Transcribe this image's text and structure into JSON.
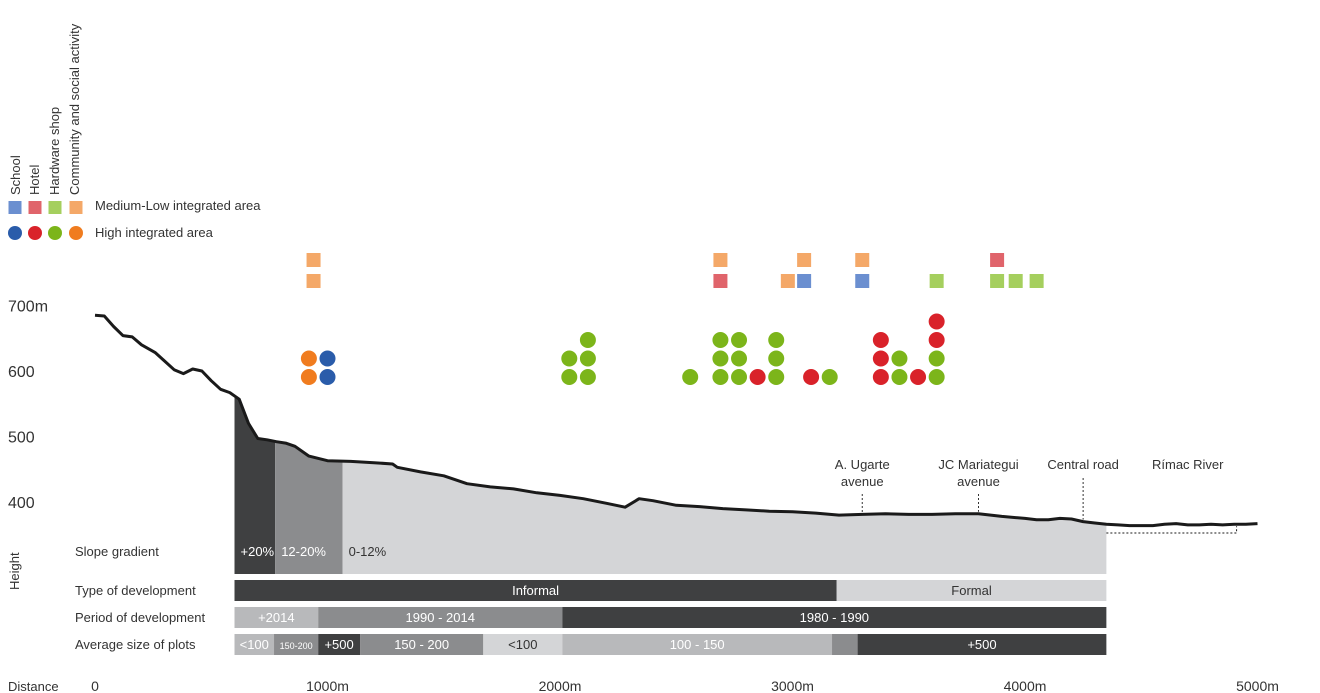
{
  "legend": {
    "categories": [
      {
        "label": "School",
        "color": "#2a5caa",
        "square_color": "#6b8fd0"
      },
      {
        "label": "Hotel",
        "color": "#d9222a",
        "square_color": "#e0646b"
      },
      {
        "label": "Hardware shop",
        "color": "#7cb51a",
        "square_color": "#a5cf5e"
      },
      {
        "label": "Community and social activity",
        "color": "#f07c1f",
        "square_color": "#f4a868"
      }
    ],
    "medium_low_label": "Medium-Low integrated area",
    "high_label": "High integrated area"
  },
  "axes": {
    "y_title": "Height",
    "x_title": "Distance",
    "y_ticks": [
      {
        "value": 700,
        "label": "700m"
      },
      {
        "value": 600,
        "label": "600"
      },
      {
        "value": 500,
        "label": "500"
      },
      {
        "value": 400,
        "label": "400"
      }
    ],
    "x_ticks": [
      {
        "value": 0,
        "label": "0"
      },
      {
        "value": 1000,
        "label": "1000m"
      },
      {
        "value": 2000,
        "label": "2000m"
      },
      {
        "value": 3000,
        "label": "3000m"
      },
      {
        "value": 4000,
        "label": "4000m"
      },
      {
        "value": 5000,
        "label": "5000m"
      }
    ]
  },
  "profile": [
    [
      0,
      685
    ],
    [
      40,
      684
    ],
    [
      80,
      668
    ],
    [
      120,
      654
    ],
    [
      160,
      652
    ],
    [
      200,
      640
    ],
    [
      260,
      628
    ],
    [
      300,
      615
    ],
    [
      340,
      602
    ],
    [
      380,
      596
    ],
    [
      420,
      603
    ],
    [
      460,
      600
    ],
    [
      500,
      585
    ],
    [
      540,
      572
    ],
    [
      580,
      567
    ],
    [
      620,
      557
    ],
    [
      660,
      520
    ],
    [
      700,
      497
    ],
    [
      740,
      495
    ],
    [
      780,
      492
    ],
    [
      820,
      490
    ],
    [
      860,
      485
    ],
    [
      920,
      470
    ],
    [
      1000,
      463
    ],
    [
      1100,
      462
    ],
    [
      1200,
      460
    ],
    [
      1280,
      458
    ],
    [
      1300,
      453
    ],
    [
      1400,
      446
    ],
    [
      1500,
      440
    ],
    [
      1600,
      428
    ],
    [
      1700,
      423
    ],
    [
      1800,
      420
    ],
    [
      1900,
      414
    ],
    [
      2000,
      410
    ],
    [
      2100,
      405
    ],
    [
      2200,
      398
    ],
    [
      2280,
      392
    ],
    [
      2340,
      405
    ],
    [
      2400,
      402
    ],
    [
      2500,
      395
    ],
    [
      2600,
      393
    ],
    [
      2700,
      390
    ],
    [
      2800,
      388
    ],
    [
      2900,
      386
    ],
    [
      3000,
      385
    ],
    [
      3100,
      383
    ],
    [
      3200,
      380
    ],
    [
      3300,
      381
    ],
    [
      3400,
      382
    ],
    [
      3500,
      381
    ],
    [
      3600,
      381
    ],
    [
      3700,
      382
    ],
    [
      3800,
      382
    ],
    [
      3900,
      378
    ],
    [
      4000,
      375
    ],
    [
      4050,
      373
    ],
    [
      4100,
      373
    ],
    [
      4150,
      375
    ],
    [
      4200,
      374
    ],
    [
      4250,
      370
    ],
    [
      4300,
      368
    ],
    [
      4350,
      366
    ],
    [
      4400,
      365
    ],
    [
      4450,
      364
    ],
    [
      4500,
      364
    ],
    [
      4550,
      364
    ],
    [
      4600,
      366
    ],
    [
      4650,
      367
    ],
    [
      4700,
      365
    ],
    [
      4750,
      365
    ],
    [
      4800,
      366
    ],
    [
      4850,
      365
    ],
    [
      4900,
      366
    ],
    [
      4950,
      366
    ],
    [
      5000,
      367
    ]
  ],
  "slope": {
    "row_label": "Slope gradient",
    "bands": [
      {
        "from": 600,
        "to": 775,
        "label": "+20%",
        "color": "#3f4041"
      },
      {
        "from": 775,
        "to": 1065,
        "label": "12-20%",
        "color": "#8b8c8e"
      },
      {
        "from": 1065,
        "to": 4350,
        "label": "0-12%",
        "color": "#d4d5d7"
      }
    ]
  },
  "landmarks": [
    {
      "distance": 3300,
      "label_lines": [
        "A. Ugarte",
        "avenue"
      ]
    },
    {
      "distance": 3800,
      "label_lines": [
        "JC Mariategui",
        "avenue"
      ]
    },
    {
      "distance": 4250,
      "label_lines": [
        "Central road"
      ]
    },
    {
      "distance": 4700,
      "label_lines": [
        "Rímac River"
      ]
    }
  ],
  "rows": [
    {
      "label": "Type of development",
      "segments": [
        {
          "from": 600,
          "to": 3190,
          "label": "Informal",
          "color": "#3f4041"
        },
        {
          "from": 3190,
          "to": 4350,
          "label": "Formal",
          "color": "#d4d5d7"
        }
      ]
    },
    {
      "label": "Period of development",
      "segments": [
        {
          "from": 600,
          "to": 960,
          "label": "+2014",
          "color": "#b8b9bb"
        },
        {
          "from": 960,
          "to": 2010,
          "label": "1990 - 2014",
          "color": "#8b8c8e"
        },
        {
          "from": 2010,
          "to": 4350,
          "label": "1980 - 1990",
          "color": "#3f4041"
        }
      ]
    },
    {
      "label": "Average size of plots",
      "segments": [
        {
          "from": 600,
          "to": 770,
          "label": "<100",
          "color": "#b8b9bb"
        },
        {
          "from": 770,
          "to": 960,
          "label": "150-200",
          "color": "#8b8c8e",
          "small": true
        },
        {
          "from": 960,
          "to": 1140,
          "label": "+500",
          "color": "#3f4041"
        },
        {
          "from": 1140,
          "to": 1670,
          "label": "150 - 200",
          "color": "#8b8c8e"
        },
        {
          "from": 1670,
          "to": 2010,
          "label": "<100",
          "color": "#d4d5d7"
        },
        {
          "from": 2010,
          "to": 3170,
          "label": "100 - 150",
          "color": "#b8b9bb"
        },
        {
          "from": 3170,
          "to": 3280,
          "label": "",
          "color": "#8b8c8e"
        },
        {
          "from": 3280,
          "to": 4350,
          "label": "+500",
          "color": "#3f4041"
        }
      ]
    }
  ],
  "facilities": {
    "medium_low": [
      {
        "distance": 940,
        "category": 3,
        "stack": 2
      },
      {
        "distance": 940,
        "category": 3,
        "stack": 1
      },
      {
        "distance": 2690,
        "category": 3,
        "stack": 2
      },
      {
        "distance": 2690,
        "category": 1,
        "stack": 1
      },
      {
        "distance": 2980,
        "category": 3,
        "stack": 1
      },
      {
        "distance": 3050,
        "category": 3,
        "stack": 2
      },
      {
        "distance": 3050,
        "category": 0,
        "stack": 1
      },
      {
        "distance": 3300,
        "category": 3,
        "stack": 2
      },
      {
        "distance": 3300,
        "category": 0,
        "stack": 1
      },
      {
        "distance": 3620,
        "category": 2,
        "stack": 1
      },
      {
        "distance": 3880,
        "category": 1,
        "stack": 2
      },
      {
        "distance": 3880,
        "category": 2,
        "stack": 1
      },
      {
        "distance": 3960,
        "category": 2,
        "stack": 1
      },
      {
        "distance": 4050,
        "category": 2,
        "stack": 1
      }
    ],
    "high": [
      {
        "distance": 920,
        "category": 3,
        "stack": 1
      },
      {
        "distance": 920,
        "category": 3,
        "stack": 2
      },
      {
        "distance": 1000,
        "category": 0,
        "stack": 1
      },
      {
        "distance": 1000,
        "category": 0,
        "stack": 2
      },
      {
        "distance": 2040,
        "category": 2,
        "stack": 1
      },
      {
        "distance": 2040,
        "category": 2,
        "stack": 2
      },
      {
        "distance": 2120,
        "category": 2,
        "stack": 1
      },
      {
        "distance": 2120,
        "category": 2,
        "stack": 2
      },
      {
        "distance": 2120,
        "category": 2,
        "stack": 3
      },
      {
        "distance": 2560,
        "category": 2,
        "stack": 1
      },
      {
        "distance": 2690,
        "category": 2,
        "stack": 1
      },
      {
        "distance": 2690,
        "category": 2,
        "stack": 2
      },
      {
        "distance": 2690,
        "category": 2,
        "stack": 3
      },
      {
        "distance": 2770,
        "category": 2,
        "stack": 1
      },
      {
        "distance": 2770,
        "category": 2,
        "stack": 2
      },
      {
        "distance": 2770,
        "category": 2,
        "stack": 3
      },
      {
        "distance": 2850,
        "category": 1,
        "stack": 1
      },
      {
        "distance": 2930,
        "category": 2,
        "stack": 1
      },
      {
        "distance": 2930,
        "category": 2,
        "stack": 2
      },
      {
        "distance": 2930,
        "category": 2,
        "stack": 3
      },
      {
        "distance": 3080,
        "category": 1,
        "stack": 1
      },
      {
        "distance": 3160,
        "category": 2,
        "stack": 1
      },
      {
        "distance": 3380,
        "category": 1,
        "stack": 1
      },
      {
        "distance": 3380,
        "category": 1,
        "stack": 2
      },
      {
        "distance": 3380,
        "category": 1,
        "stack": 3
      },
      {
        "distance": 3460,
        "category": 2,
        "stack": 1
      },
      {
        "distance": 3460,
        "category": 2,
        "stack": 2
      },
      {
        "distance": 3540,
        "category": 1,
        "stack": 1
      },
      {
        "distance": 3620,
        "category": 2,
        "stack": 1
      },
      {
        "distance": 3620,
        "category": 2,
        "stack": 2
      },
      {
        "distance": 3620,
        "category": 1,
        "stack": 3
      },
      {
        "distance": 3620,
        "category": 1,
        "stack": 4
      }
    ]
  }
}
